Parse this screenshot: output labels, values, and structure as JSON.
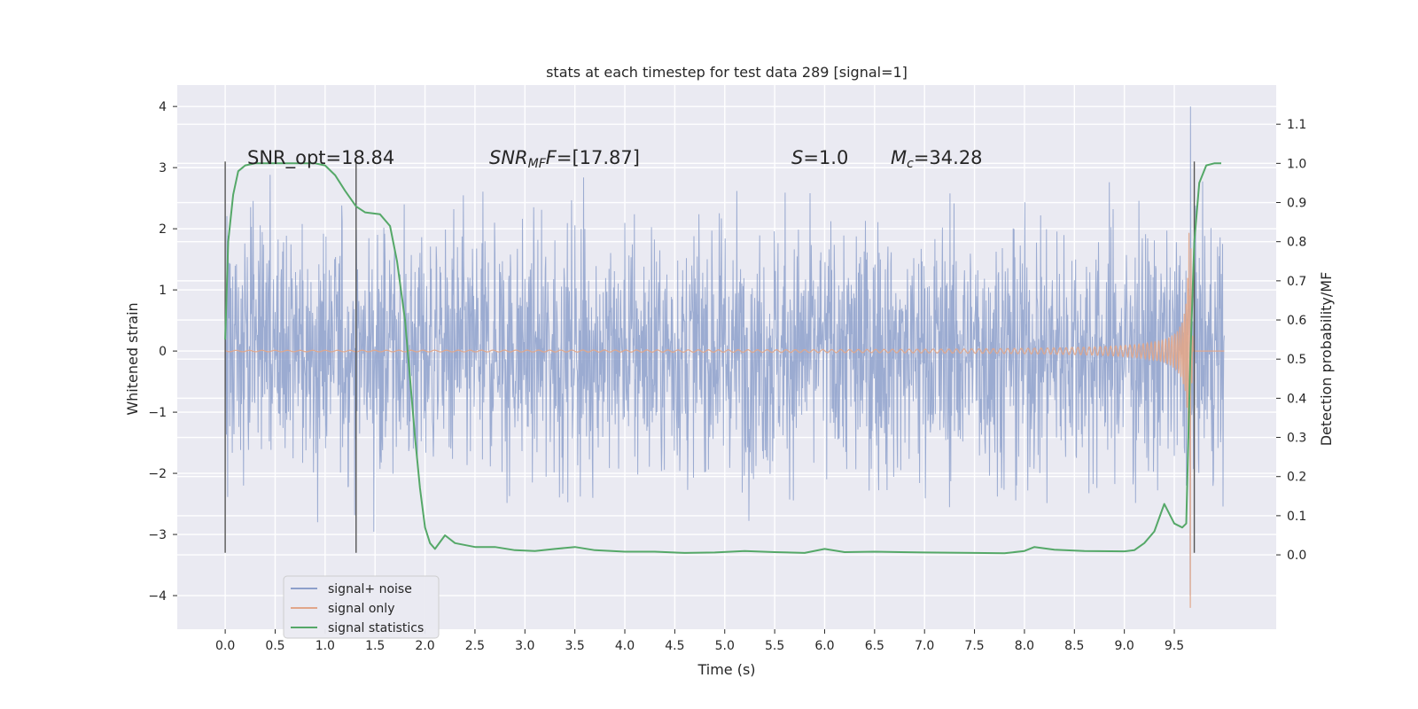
{
  "chart_data": {
    "type": "line",
    "title": "stats at each timestep for test data 289 [signal=1]",
    "xlabel": "Time (s)",
    "ylabel": "Whitened strain",
    "y2label": "Detection probability/MF",
    "xlim": [
      -0.48,
      10.52
    ],
    "ylim": [
      -4.55,
      4.35
    ],
    "y2lim": [
      -0.19,
      1.2
    ],
    "xticks": [
      "0.0",
      "0.5",
      "1.0",
      "1.5",
      "2.0",
      "2.5",
      "3.0",
      "3.5",
      "4.0",
      "4.5",
      "5.0",
      "5.5",
      "6.0",
      "6.5",
      "7.0",
      "7.5",
      "8.0",
      "8.5",
      "9.0",
      "9.5"
    ],
    "yticks": [
      "4",
      "3",
      "2",
      "1",
      "0",
      "−1",
      "−2",
      "−3",
      "−4"
    ],
    "y2ticks": [
      "1.1",
      "1.0",
      "0.9",
      "0.8",
      "0.7",
      "0.6",
      "0.5",
      "0.4",
      "0.3",
      "0.2",
      "0.1",
      "0.0"
    ],
    "grid": true,
    "legend_position": "lower-left",
    "annotations": {
      "snr_opt": "SNR_opt=18.84",
      "snr_mf_main": "SNR",
      "snr_mf_sub": "MF",
      "snr_mf_value": "=[17.87]",
      "s_main": "S",
      "s_value": "=1.0",
      "mc_main": "M",
      "mc_sub": "c",
      "mc_value": "=34.28"
    },
    "vlines": {
      "x": [
        0.0,
        1.31,
        9.7
      ],
      "y_range": [
        -3.3,
        3.1
      ],
      "color": "#555555"
    },
    "series": [
      {
        "name": "signal+ noise",
        "color": "#8da0cb",
        "kind": "noise",
        "x_range": [
          0.0,
          10.0
        ],
        "typical_amplitude": 1.2,
        "peak_amplitude": 3.6,
        "burst": {
          "x": 9.66,
          "min": -4.0,
          "max": 4.0
        }
      },
      {
        "name": "signal only",
        "color": "#e1a68a",
        "kind": "chirp",
        "x_range": [
          0.0,
          10.0
        ],
        "merger_time": 9.66,
        "peak_max": 3.9,
        "peak_min": -4.2
      },
      {
        "name": "signal statistics",
        "color": "#55a868",
        "axis": "right",
        "x": [
          0.0,
          0.03,
          0.08,
          0.13,
          0.2,
          0.3,
          0.5,
          0.75,
          0.9,
          1.0,
          1.1,
          1.2,
          1.31,
          1.4,
          1.55,
          1.65,
          1.72,
          1.8,
          1.85,
          1.9,
          1.95,
          2.0,
          2.05,
          2.1,
          2.2,
          2.3,
          2.5,
          2.7,
          2.9,
          3.1,
          3.3,
          3.5,
          3.7,
          4.0,
          4.3,
          4.6,
          4.9,
          5.2,
          5.5,
          5.8,
          6.0,
          6.2,
          6.5,
          7.0,
          7.5,
          7.8,
          8.0,
          8.1,
          8.3,
          8.6,
          9.0,
          9.1,
          9.2,
          9.3,
          9.4,
          9.5,
          9.58,
          9.62,
          9.66,
          9.7,
          9.75,
          9.82,
          9.9,
          9.97
        ],
        "values": [
          0.55,
          0.8,
          0.92,
          0.98,
          0.995,
          1.0,
          1.0,
          1.0,
          1.0,
          0.995,
          0.97,
          0.93,
          0.89,
          0.875,
          0.87,
          0.84,
          0.75,
          0.6,
          0.45,
          0.3,
          0.17,
          0.07,
          0.03,
          0.015,
          0.05,
          0.03,
          0.02,
          0.02,
          0.012,
          0.01,
          0.015,
          0.02,
          0.012,
          0.008,
          0.008,
          0.005,
          0.006,
          0.01,
          0.007,
          0.005,
          0.015,
          0.007,
          0.008,
          0.006,
          0.005,
          0.004,
          0.01,
          0.02,
          0.013,
          0.01,
          0.009,
          0.012,
          0.03,
          0.06,
          0.13,
          0.08,
          0.07,
          0.08,
          0.5,
          0.8,
          0.95,
          0.995,
          1.0,
          1.0
        ]
      }
    ]
  }
}
